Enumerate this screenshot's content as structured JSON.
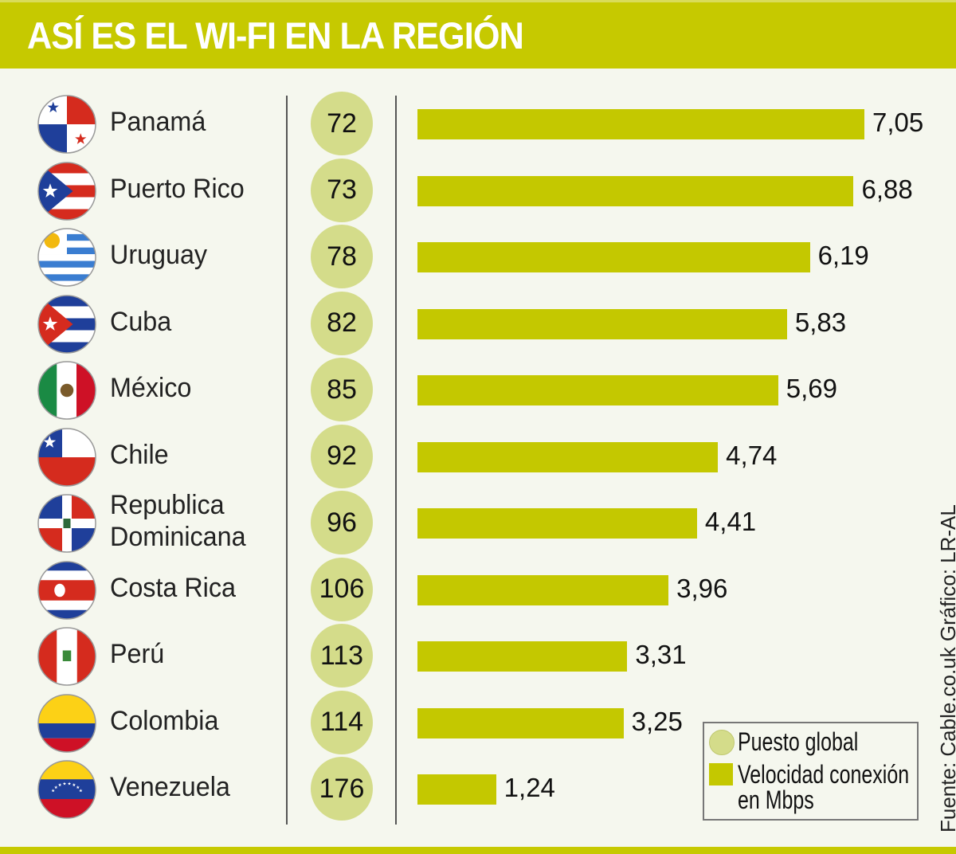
{
  "title": "ASÍ ES EL WI-FI EN LA REGIÓN",
  "colors": {
    "header": "#c6c900",
    "bar": "#c4c800",
    "circle": "#d4dc8a",
    "background": "#f5f7ee"
  },
  "chart_data": {
    "type": "bar",
    "orientation": "horizontal",
    "title": "ASÍ ES EL WI-FI EN LA REGIÓN",
    "categories": [
      "Panamá",
      "Puerto Rico",
      "Uruguay",
      "Cuba",
      "México",
      "Chile",
      "Republica Dominicana",
      "Costa Rica",
      "Perú",
      "Colombia",
      "Venezuela"
    ],
    "series": [
      {
        "name": "Velocidad conexión en Mbps",
        "values": [
          7.05,
          6.88,
          6.19,
          5.83,
          5.69,
          4.74,
          4.41,
          3.96,
          3.31,
          3.25,
          1.24
        ],
        "labels": [
          "7,05",
          "6,88",
          "6,19",
          "5,83",
          "5,69",
          "4,74",
          "4,41",
          "3,96",
          "3,31",
          "3,25",
          "1,24"
        ]
      },
      {
        "name": "Puesto global",
        "values": [
          72,
          73,
          78,
          82,
          85,
          92,
          96,
          106,
          113,
          114,
          176
        ]
      }
    ],
    "xlim": [
      0,
      7.05
    ],
    "legend": {
      "placement": "bottom-right",
      "items": [
        "Puesto global",
        "Velocidad conexión en Mbps"
      ]
    }
  },
  "rows": [
    {
      "name": "Panamá",
      "flag": "panama-flag-icon"
    },
    {
      "name": "Puerto Rico",
      "flag": "puerto-rico-flag-icon"
    },
    {
      "name": "Uruguay",
      "flag": "uruguay-flag-icon"
    },
    {
      "name": "Cuba",
      "flag": "cuba-flag-icon"
    },
    {
      "name": "México",
      "flag": "mexico-flag-icon"
    },
    {
      "name": "Chile",
      "flag": "chile-flag-icon"
    },
    {
      "name": "Republica Dominicana",
      "name_lines": [
        "Republica",
        "Dominicana"
      ],
      "flag": "dominican-republic-flag-icon"
    },
    {
      "name": "Costa Rica",
      "flag": "costa-rica-flag-icon"
    },
    {
      "name": "Perú",
      "flag": "peru-flag-icon"
    },
    {
      "name": "Colombia",
      "flag": "colombia-flag-icon"
    },
    {
      "name": "Venezuela",
      "flag": "venezuela-flag-icon"
    }
  ],
  "legend": {
    "rank": "Puesto global",
    "speed_line1": "Velocidad conexión",
    "speed_line2": "en Mbps"
  },
  "source": "Fuente: Cable.co.uk    Gráfico: LR-AL"
}
